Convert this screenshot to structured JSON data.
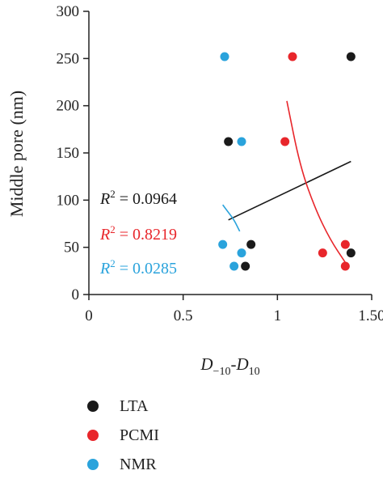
{
  "chart_data": {
    "type": "scatter",
    "xlabel_parts": [
      "D",
      "−10",
      "-D",
      "10"
    ],
    "ylabel": "Middle pore (nm)",
    "xlim": [
      0,
      1.5
    ],
    "ylim": [
      0,
      300
    ],
    "xticks": [
      0,
      0.5,
      1,
      1.5
    ],
    "xtick_labels": [
      "0",
      "0.5",
      "1",
      "1.50"
    ],
    "yticks": [
      0,
      50,
      100,
      150,
      200,
      250,
      300
    ],
    "ytick_labels": [
      "0",
      "50",
      "100",
      "150",
      "200",
      "250",
      "300"
    ],
    "series": [
      {
        "name": "LTA",
        "color": "#1a1a1a",
        "points": [
          [
            1.39,
            252
          ],
          [
            0.74,
            162
          ],
          [
            0.86,
            53
          ],
          [
            0.83,
            30
          ],
          [
            1.39,
            44
          ]
        ],
        "fit": {
          "type": "linear",
          "x": [
            0.74,
            1.39
          ],
          "y": [
            79,
            141
          ]
        },
        "r2": "0.0964"
      },
      {
        "name": "PCMI",
        "color": "#e8262b",
        "points": [
          [
            1.08,
            252
          ],
          [
            1.04,
            162
          ],
          [
            1.36,
            53
          ],
          [
            1.24,
            44
          ],
          [
            1.36,
            30
          ]
        ],
        "fit": {
          "type": "curve",
          "x": [
            1.05,
            1.12,
            1.2,
            1.28,
            1.36
          ],
          "y": [
            205,
            136,
            91,
            58,
            34
          ]
        },
        "r2": "0.8219"
      },
      {
        "name": "NMR",
        "color": "#2aa3dc",
        "points": [
          [
            0.72,
            252
          ],
          [
            0.81,
            162
          ],
          [
            0.71,
            53
          ],
          [
            0.81,
            44
          ],
          [
            0.77,
            30
          ]
        ],
        "fit": {
          "type": "curve",
          "x": [
            0.71,
            0.74,
            0.77,
            0.8
          ],
          "y": [
            95,
            87,
            79,
            67
          ]
        },
        "r2": "0.0285"
      }
    ],
    "r2_prefix": "R",
    "r2_sup": "2",
    "r2_eq": " = ",
    "legend_position": "bottom"
  }
}
